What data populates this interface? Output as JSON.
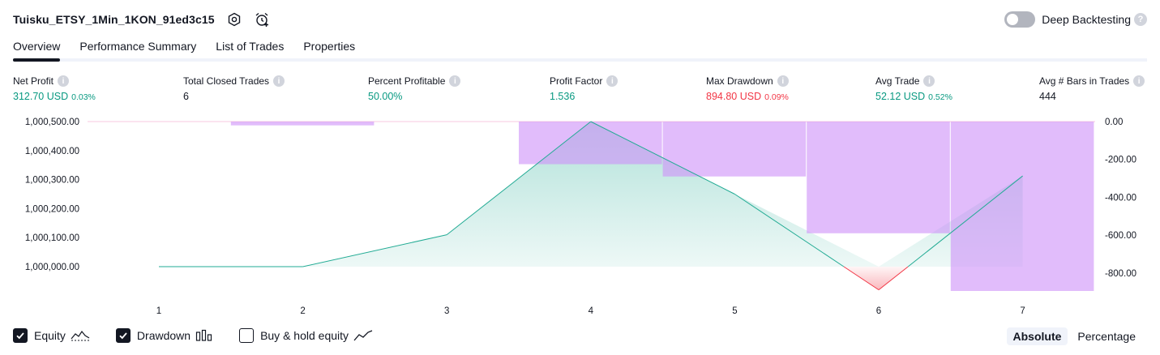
{
  "header": {
    "strategy_name": "Tuisku_ETSY_1Min_1KON_91ed3c15",
    "settings_icon": "hexagon-gear-icon",
    "alert_icon": "alarm-clock-plus-icon",
    "deep_backtesting_label": "Deep Backtesting",
    "help_icon": "question-icon"
  },
  "tabs": [
    {
      "label": "Overview",
      "active": true
    },
    {
      "label": "Performance Summary",
      "active": false
    },
    {
      "label": "List of Trades",
      "active": false
    },
    {
      "label": "Properties",
      "active": false
    }
  ],
  "metrics": [
    {
      "title": "Net Profit",
      "value": "312.70 USD",
      "sub": "0.03%",
      "tone": "pos"
    },
    {
      "title": "Total Closed Trades",
      "value": "6",
      "sub": "",
      "tone": "neutral"
    },
    {
      "title": "Percent Profitable",
      "value": "50.00%",
      "sub": "",
      "tone": "pos"
    },
    {
      "title": "Profit Factor",
      "value": "1.536",
      "sub": "",
      "tone": "pos"
    },
    {
      "title": "Max Drawdown",
      "value": "894.80 USD",
      "sub": "0.09%",
      "tone": "neg"
    },
    {
      "title": "Avg Trade",
      "value": "52.12 USD",
      "sub": "0.52%",
      "tone": "pos"
    },
    {
      "title": "Avg # Bars in Trades",
      "value": "444",
      "sub": "",
      "tone": "neutral"
    }
  ],
  "colors": {
    "equity_line": "#22ab94",
    "equity_fill": "#22ab94",
    "drawdown_line": "#f23645",
    "drawdown_bar": "#ce93f8",
    "positive": "#089981",
    "negative": "#f23645"
  },
  "chart_data": {
    "type": "line",
    "x": [
      1,
      2,
      3,
      4,
      5,
      6,
      7
    ],
    "series": [
      {
        "name": "Equity",
        "values": [
          1000000.0,
          1000000.0,
          1000110.0,
          1000500.0,
          1000250.0,
          999920.0,
          1000312.7
        ],
        "axis": "left"
      },
      {
        "name": "Drawdown",
        "values": [
          0,
          -20,
          0,
          -225,
          -290,
          -590,
          -894.8
        ],
        "axis": "right",
        "type": "bar"
      }
    ],
    "left_ticks": [
      "1,000,500.00",
      "1,000,400.00",
      "1,000,300.00",
      "1,000,200.00",
      "1,000,100.00",
      "1,000,000.00"
    ],
    "left_tick_values": [
      1000500,
      1000400,
      1000300,
      1000200,
      1000100,
      1000000
    ],
    "right_ticks": [
      "0.00",
      "-200.00",
      "-400.00",
      "-600.00",
      "-800.00"
    ],
    "right_tick_values": [
      0,
      -200,
      -400,
      -600,
      -800
    ],
    "x_ticks": [
      "1",
      "2",
      "3",
      "4",
      "5",
      "6",
      "7"
    ],
    "ylim_left": [
      999900,
      1000500
    ],
    "ylim_right": [
      -894.8,
      0
    ]
  },
  "legend": {
    "items": [
      {
        "label": "Equity",
        "checked": true,
        "icon": "equity-line-icon"
      },
      {
        "label": "Drawdown",
        "checked": true,
        "icon": "drawdown-bars-icon"
      },
      {
        "label": "Buy & hold equity",
        "checked": false,
        "icon": "buy-hold-line-icon"
      }
    ]
  },
  "modes": {
    "absolute": "Absolute",
    "percentage": "Percentage",
    "active": "absolute"
  }
}
